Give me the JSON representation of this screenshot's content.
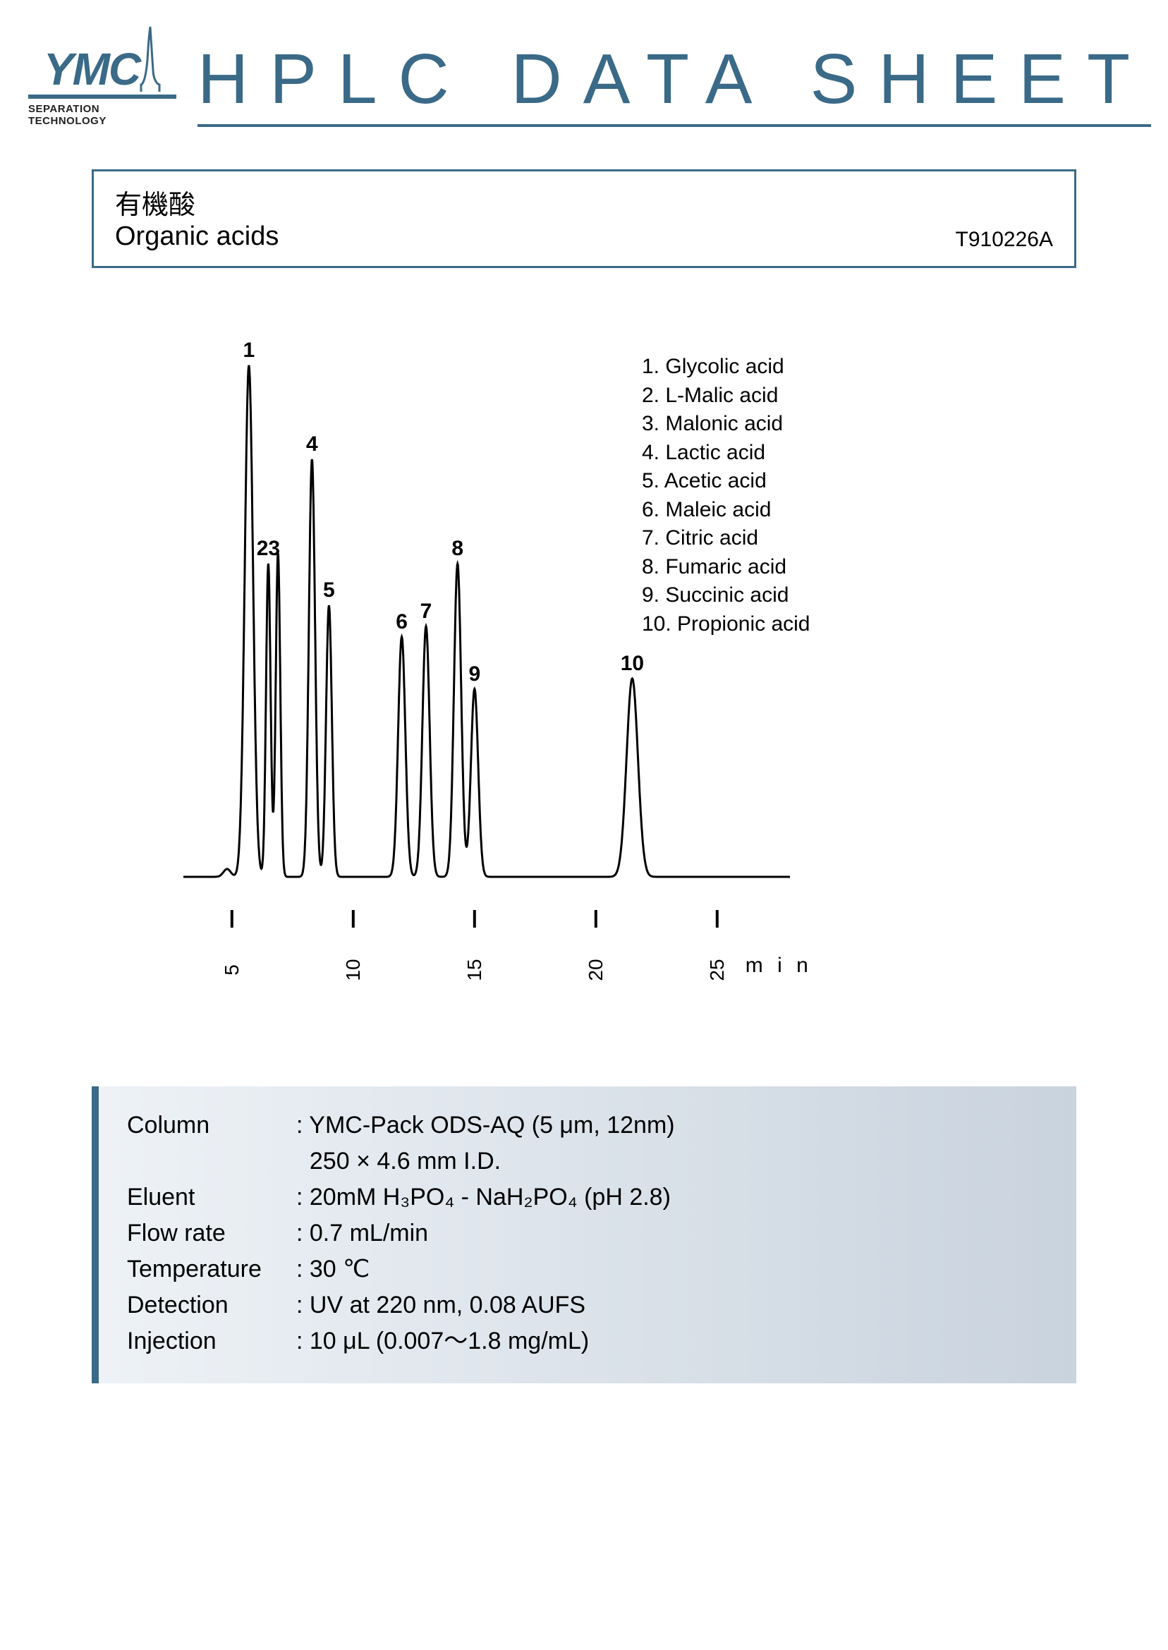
{
  "colors": {
    "brand": "#3a6a87",
    "text": "#000000",
    "panel_bg_from": "#eef2f6",
    "panel_bg_to": "#c9d3de",
    "page_bg": "#ffffff",
    "trace": "#000000"
  },
  "header": {
    "logo_text": "YMC",
    "logo_sub": "SEPARATION TECHNOLOGY",
    "title": "HPLC DATA SHEET"
  },
  "sample": {
    "title_jp": "有機酸",
    "title_en": "Organic acids",
    "code": "T910226A"
  },
  "chromatogram": {
    "type": "line",
    "x_axis": {
      "label": "m i n",
      "xlim": [
        3,
        28
      ],
      "ticks": [
        5,
        10,
        15,
        20,
        25
      ],
      "tick_labels": [
        "5",
        "10",
        "15",
        "20",
        "25"
      ]
    },
    "y_axis": {
      "ylim": [
        0,
        100
      ]
    },
    "baseline_y": 5,
    "line_width": 3,
    "peaks": [
      {
        "n": 1,
        "rt": 5.7,
        "h": 98,
        "w": 0.4,
        "label": "1"
      },
      {
        "n": 2,
        "rt": 6.5,
        "h": 60,
        "w": 0.22,
        "label_override": "23"
      },
      {
        "n": 3,
        "rt": 6.9,
        "h": 62,
        "w": 0.22,
        "suppress_label": true
      },
      {
        "n": 4,
        "rt": 8.3,
        "h": 80,
        "w": 0.3,
        "label": "4"
      },
      {
        "n": 5,
        "rt": 9.0,
        "h": 52,
        "w": 0.28,
        "label": "5"
      },
      {
        "n": 6,
        "rt": 12.0,
        "h": 46,
        "w": 0.35,
        "label": "6"
      },
      {
        "n": 7,
        "rt": 13.0,
        "h": 48,
        "w": 0.35,
        "label": "7"
      },
      {
        "n": 8,
        "rt": 14.3,
        "h": 60,
        "w": 0.35,
        "label": "8"
      },
      {
        "n": 9,
        "rt": 15.0,
        "h": 36,
        "w": 0.35,
        "label": "9"
      },
      {
        "n": 10,
        "rt": 21.5,
        "h": 38,
        "w": 0.55,
        "label": "10"
      }
    ],
    "legend": [
      "1. Glycolic acid",
      "2. L-Malic acid",
      "3. Malonic acid",
      "4. Lactic acid",
      "5. Acetic acid",
      "6. Maleic acid",
      "7. Citric acid",
      "8. Fumaric acid",
      "9. Succinic acid",
      "10. Propionic acid"
    ]
  },
  "conditions": {
    "rows": [
      {
        "label": "Column",
        "value": "YMC-Pack ODS-AQ (5 μm, 12nm)",
        "value2": "250 × 4.6 mm I.D."
      },
      {
        "label": "Eluent",
        "value": "20mM H₃PO₄ - NaH₂PO₄ (pH 2.8)"
      },
      {
        "label": "Flow rate",
        "value": "0.7 mL/min"
      },
      {
        "label": "Temperature",
        "value": "30 ℃"
      },
      {
        "label": "Detection",
        "value": "UV at 220 nm, 0.08 AUFS"
      },
      {
        "label": "Injection",
        "value": "10 μL (0.007～1.8 mg/mL)"
      }
    ]
  }
}
